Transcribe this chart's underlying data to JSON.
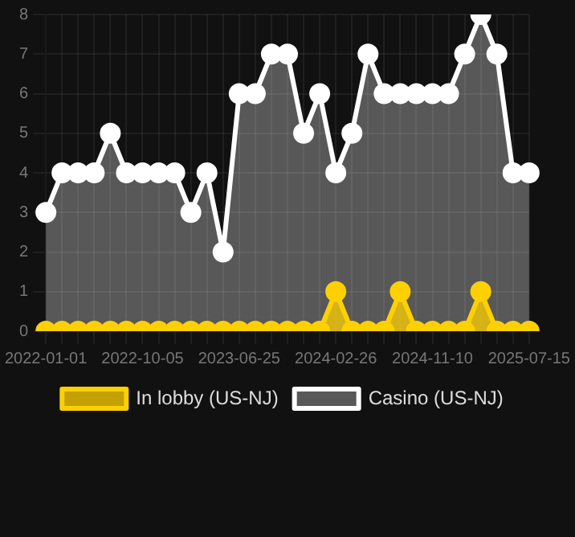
{
  "chart_data": {
    "type": "area",
    "categories": [
      "2022-01-01",
      null,
      null,
      null,
      null,
      null,
      "2022-10-05",
      null,
      null,
      null,
      null,
      null,
      "2023-06-25",
      null,
      null,
      null,
      null,
      null,
      "2024-02-26",
      null,
      null,
      null,
      null,
      null,
      "2024-11-10",
      null,
      null,
      null,
      null,
      null,
      "2025-07-15"
    ],
    "series": [
      {
        "name": "In lobby (US-NJ)",
        "color": "#ffd000",
        "values": [
          0,
          0,
          0,
          0,
          0,
          0,
          0,
          0,
          0,
          0,
          0,
          0,
          0,
          0,
          0,
          0,
          0,
          0,
          1,
          0,
          0,
          0,
          1,
          0,
          0,
          0,
          0,
          1,
          0,
          0,
          0
        ]
      },
      {
        "name": "Casino (US-NJ)",
        "color": "#ffffff",
        "values": [
          3,
          4,
          4,
          4,
          5,
          4,
          4,
          4,
          4,
          3,
          4,
          2,
          6,
          6,
          7,
          7,
          5,
          6,
          4,
          5,
          7,
          6,
          6,
          6,
          6,
          6,
          7,
          8,
          7,
          4,
          4
        ]
      }
    ],
    "ylim": [
      0,
      8
    ],
    "yticks": [
      0,
      1,
      2,
      3,
      4,
      5,
      6,
      7,
      8
    ],
    "grid": true,
    "legend": "bottom",
    "marker": "circle"
  }
}
